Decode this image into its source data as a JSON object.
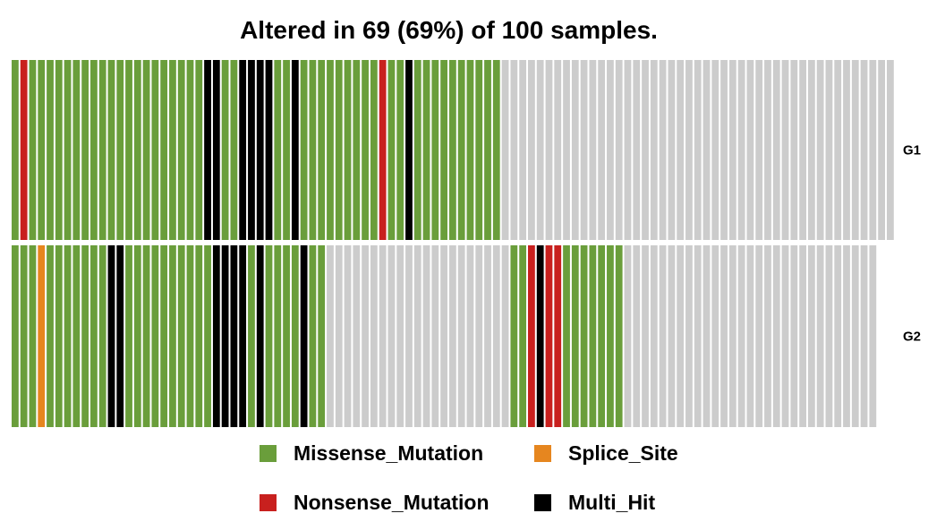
{
  "colors": {
    "Missense_Mutation": "#6A9E3B",
    "Splice_Site": "#E6861F",
    "Nonsense_Mutation": "#C8201E",
    "Multi_Hit": "#000000",
    "none": "#CCCCCC"
  },
  "chart_data": {
    "type": "heatmap",
    "title": "Altered in 69 (69%) of 100 samples.",
    "n_samples": 100,
    "genes": [
      {
        "name": "G1",
        "samples": [
          "Missense_Mutation",
          "Nonsense_Mutation",
          "Missense_Mutation",
          "Missense_Mutation",
          "Missense_Mutation",
          "Missense_Mutation",
          "Missense_Mutation",
          "Missense_Mutation",
          "Missense_Mutation",
          "Missense_Mutation",
          "Missense_Mutation",
          "Missense_Mutation",
          "Missense_Mutation",
          "Missense_Mutation",
          "Missense_Mutation",
          "Missense_Mutation",
          "Missense_Mutation",
          "Missense_Mutation",
          "Missense_Mutation",
          "Missense_Mutation",
          "Missense_Mutation",
          "Missense_Mutation",
          "Multi_Hit",
          "Multi_Hit",
          "Missense_Mutation",
          "Missense_Mutation",
          "Multi_Hit",
          "Multi_Hit",
          "Multi_Hit",
          "Multi_Hit",
          "Missense_Mutation",
          "Missense_Mutation",
          "Multi_Hit",
          "Missense_Mutation",
          "Missense_Mutation",
          "Missense_Mutation",
          "Missense_Mutation",
          "Missense_Mutation",
          "Missense_Mutation",
          "Missense_Mutation",
          "Missense_Mutation",
          "Missense_Mutation",
          "Nonsense_Mutation",
          "Missense_Mutation",
          "Missense_Mutation",
          "Multi_Hit",
          "Missense_Mutation",
          "Missense_Mutation",
          "Missense_Mutation",
          "Missense_Mutation",
          "Missense_Mutation",
          "Missense_Mutation",
          "Missense_Mutation",
          "Missense_Mutation",
          "Missense_Mutation",
          "Missense_Mutation",
          "",
          "",
          "",
          "",
          "",
          "",
          "",
          "",
          "",
          "",
          "",
          "",
          "",
          "",
          "",
          "",
          "",
          "",
          "",
          "",
          "",
          "",
          "",
          "",
          "",
          "",
          "",
          "",
          "",
          "",
          "",
          "",
          "",
          "",
          "",
          "",
          "",
          "",
          "",
          "",
          "",
          "",
          "",
          "",
          ""
        ]
      },
      {
        "name": "G2",
        "samples": [
          "Missense_Mutation",
          "Missense_Mutation",
          "Missense_Mutation",
          "Splice_Site",
          "Missense_Mutation",
          "Missense_Mutation",
          "Missense_Mutation",
          "Missense_Mutation",
          "Missense_Mutation",
          "Missense_Mutation",
          "Missense_Mutation",
          "Multi_Hit",
          "Multi_Hit",
          "Missense_Mutation",
          "Missense_Mutation",
          "Missense_Mutation",
          "Missense_Mutation",
          "Missense_Mutation",
          "Missense_Mutation",
          "Missense_Mutation",
          "Missense_Mutation",
          "Missense_Mutation",
          "Missense_Mutation",
          "Multi_Hit",
          "Multi_Hit",
          "Multi_Hit",
          "Multi_Hit",
          "Missense_Mutation",
          "Multi_Hit",
          "Missense_Mutation",
          "Missense_Mutation",
          "Missense_Mutation",
          "Missense_Mutation",
          "Multi_Hit",
          "Missense_Mutation",
          "Missense_Mutation",
          "",
          "",
          "",
          "",
          "",
          "",
          "",
          "",
          "",
          "",
          "",
          "",
          "",
          "",
          "",
          "",
          "",
          "",
          "",
          "",
          "",
          "Missense_Mutation",
          "Missense_Mutation",
          "Nonsense_Mutation",
          "Multi_Hit",
          "Nonsense_Mutation",
          "Nonsense_Mutation",
          "Missense_Mutation",
          "Missense_Mutation",
          "Missense_Mutation",
          "Missense_Mutation",
          "Missense_Mutation",
          "Missense_Mutation",
          "Missense_Mutation",
          "",
          "",
          "",
          "",
          "",
          "",
          "",
          "",
          "",
          "",
          "",
          "",
          "",
          "",
          "",
          "",
          "",
          "",
          "",
          "",
          "",
          "",
          "",
          "",
          "",
          "",
          "",
          "",
          ""
        ]
      }
    ],
    "legend": {
      "placement": "bottom",
      "items": [
        {
          "label": "Missense_Mutation",
          "key": "Missense_Mutation"
        },
        {
          "label": "Splice_Site",
          "key": "Splice_Site"
        },
        {
          "label": "Nonsense_Mutation",
          "key": "Nonsense_Mutation"
        },
        {
          "label": "Multi_Hit",
          "key": "Multi_Hit"
        }
      ]
    }
  }
}
